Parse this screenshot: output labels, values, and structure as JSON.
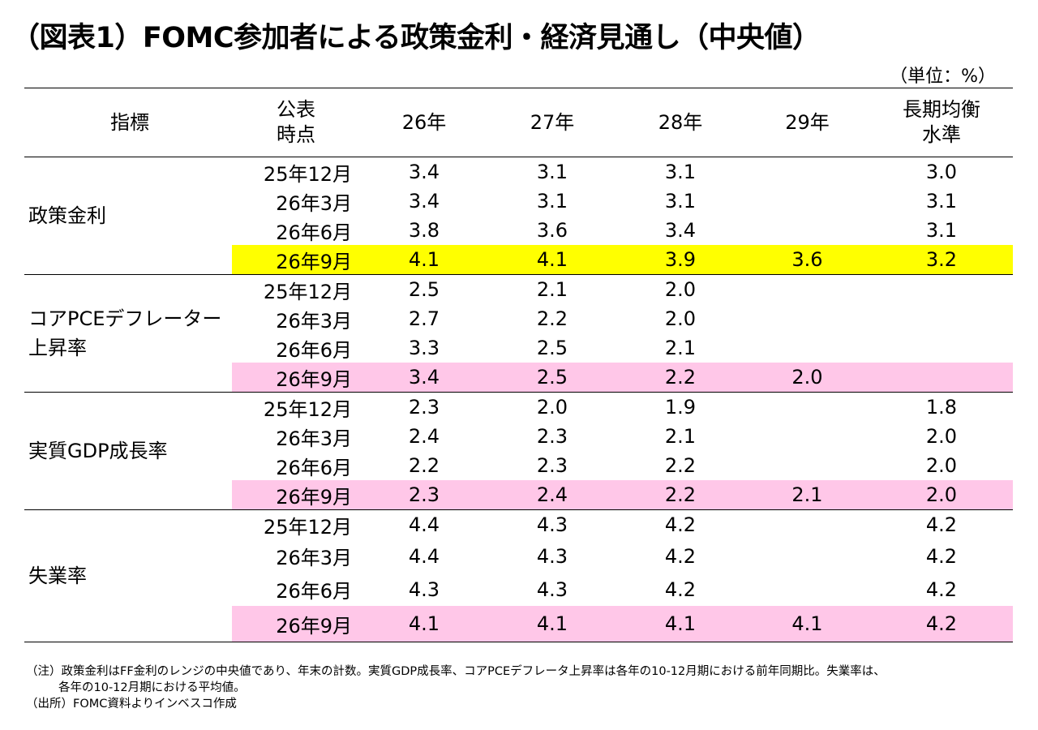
{
  "title": "（図表1）FOMC参加者による政策金利・経済見通し（中央値）",
  "unit": "（単位：%）",
  "colors": {
    "yellow": "#ffff00",
    "pink": "#ffc7e8"
  },
  "headers": {
    "indicator": "指標",
    "published_line1": "公表",
    "published_line2": "時点",
    "y26": "26年",
    "y27": "27年",
    "y28": "28年",
    "y29": "29年",
    "longrun_line1": "長期均衡",
    "longrun_line2": "水準"
  },
  "groups": [
    {
      "label_lines": [
        "政策金利"
      ],
      "rows": [
        {
          "date": "25年12月",
          "y26": "3.4",
          "y27": "3.1",
          "y28": "3.1",
          "y29": "",
          "lr": "3.0"
        },
        {
          "date": "26年3月",
          "y26": "3.4",
          "y27": "3.1",
          "y28": "3.1",
          "y29": "",
          "lr": "3.1"
        },
        {
          "date": "26年6月",
          "y26": "3.8",
          "y27": "3.6",
          "y28": "3.4",
          "y29": "",
          "lr": "3.1"
        },
        {
          "date": "26年9月",
          "y26": "4.1",
          "y27": "4.1",
          "y28": "3.9",
          "y29": "3.6",
          "lr": "3.2"
        }
      ]
    },
    {
      "label_lines": [
        "コアPCEデフレーター",
        "上昇率"
      ],
      "rows": [
        {
          "date": "25年12月",
          "y26": "2.5",
          "y27": "2.1",
          "y28": "2.0",
          "y29": "",
          "lr": ""
        },
        {
          "date": "26年3月",
          "y26": "2.7",
          "y27": "2.2",
          "y28": "2.0",
          "y29": "",
          "lr": ""
        },
        {
          "date": "26年6月",
          "y26": "3.3",
          "y27": "2.5",
          "y28": "2.1",
          "y29": "",
          "lr": ""
        },
        {
          "date": "26年9月",
          "y26": "3.4",
          "y27": "2.5",
          "y28": "2.2",
          "y29": "2.0",
          "lr": ""
        }
      ]
    },
    {
      "label_lines": [
        "実質GDP成長率"
      ],
      "rows": [
        {
          "date": "25年12月",
          "y26": "2.3",
          "y27": "2.0",
          "y28": "1.9",
          "y29": "",
          "lr": "1.8"
        },
        {
          "date": "26年3月",
          "y26": "2.4",
          "y27": "2.3",
          "y28": "2.1",
          "y29": "",
          "lr": "2.0"
        },
        {
          "date": "26年6月",
          "y26": "2.2",
          "y27": "2.3",
          "y28": "2.2",
          "y29": "",
          "lr": "2.0"
        },
        {
          "date": "26年9月",
          "y26": "2.3",
          "y27": "2.4",
          "y28": "2.2",
          "y29": "2.1",
          "lr": "2.0"
        }
      ]
    },
    {
      "label_lines": [
        "失業率"
      ],
      "rows": [
        {
          "date": "25年12月",
          "y26": "4.4",
          "y27": "4.3",
          "y28": "4.2",
          "y29": "",
          "lr": "4.2"
        },
        {
          "date": "26年3月",
          "y26": "4.4",
          "y27": "4.3",
          "y28": "4.2",
          "y29": "",
          "lr": "4.2"
        },
        {
          "date": "26年6月",
          "y26": "4.3",
          "y27": "4.3",
          "y28": "4.2",
          "y29": "",
          "lr": "4.2"
        },
        {
          "date": "26年9月",
          "y26": "4.1",
          "y27": "4.1",
          "y28": "4.1",
          "y29": "4.1",
          "lr": "4.2"
        }
      ]
    }
  ],
  "notes": {
    "note_line1": "（注）政策金利はFF金利のレンジの中央値であり、年末の計数。実質GDP成長率、コアPCEデフレータ上昇率は各年の10-12月期における前年同期比。失業率は、",
    "note_line2": "各年の10-12月期における平均値。",
    "source": "（出所）FOMC資料よりインベスコ作成"
  }
}
